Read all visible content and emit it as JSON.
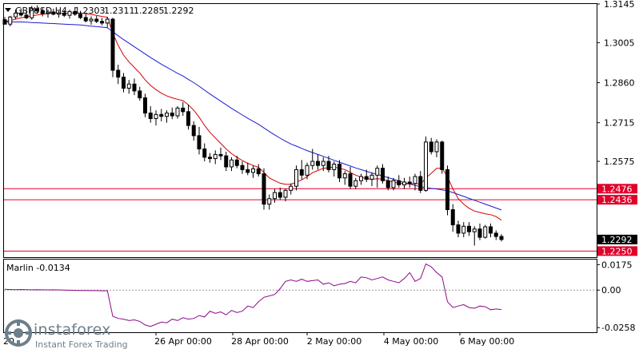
{
  "chart_data": [
    {
      "type": "candlestick",
      "title": "GBPUSD,H4",
      "ohlc_header": [
        "1.2303",
        "1.2311",
        "1.2285",
        "1.2292"
      ],
      "y_ticks": [
        "1.3145",
        "1.3005",
        "1.2860",
        "1.2715",
        "1.2575"
      ],
      "ylim": [
        1.2228,
        1.3145
      ],
      "x_labels": [
        "26 Apr 00:00",
        "28 Apr 00:00",
        "2 May 00:00",
        "4 May 00:00",
        "6 May 00:00"
      ],
      "x_label_first_partial": "20",
      "levels": [
        {
          "label": "1.2476",
          "value": 1.2476,
          "color": "#e0002a"
        },
        {
          "label": "1.2436",
          "value": 1.2436,
          "color": "#e0002a"
        },
        {
          "label": "1.2250",
          "value": 1.225,
          "color": "#e0002a"
        }
      ],
      "current_price_label": "1.2292",
      "current_price": 1.2292,
      "candles": [
        [
          1.3088,
          1.3098,
          1.307,
          1.3072
        ],
        [
          1.3072,
          1.3102,
          1.3064,
          1.3098
        ],
        [
          1.3098,
          1.3125,
          1.309,
          1.3112
        ],
        [
          1.3112,
          1.3128,
          1.31,
          1.3105
        ],
        [
          1.3105,
          1.312,
          1.309,
          1.3095
        ],
        [
          1.3095,
          1.3138,
          1.3088,
          1.3128
        ],
        [
          1.3128,
          1.314,
          1.3112,
          1.312
        ],
        [
          1.312,
          1.313,
          1.31,
          1.311
        ],
        [
          1.311,
          1.3125,
          1.3096,
          1.3116
        ],
        [
          1.3116,
          1.3128,
          1.3104,
          1.3108
        ],
        [
          1.3108,
          1.312,
          1.3096,
          1.3112
        ],
        [
          1.3112,
          1.3122,
          1.3098,
          1.3104
        ],
        [
          1.3104,
          1.3124,
          1.3092,
          1.3118
        ],
        [
          1.3118,
          1.3134,
          1.3102,
          1.3108
        ],
        [
          1.3108,
          1.312,
          1.309,
          1.3096
        ],
        [
          1.3096,
          1.3108,
          1.3078,
          1.3084
        ],
        [
          1.3084,
          1.31,
          1.307,
          1.309
        ],
        [
          1.309,
          1.3102,
          1.3076,
          1.3082
        ],
        [
          1.3082,
          1.3094,
          1.3068,
          1.3076
        ],
        [
          1.3076,
          1.3098,
          1.306,
          1.309
        ],
        [
          1.309,
          1.3095,
          1.288,
          1.2905
        ],
        [
          1.2905,
          1.2925,
          1.2855,
          1.288
        ],
        [
          1.288,
          1.2895,
          1.2825,
          1.284
        ],
        [
          1.284,
          1.287,
          1.282,
          1.2855
        ],
        [
          1.2855,
          1.2875,
          1.2815,
          1.283
        ],
        [
          1.283,
          1.2845,
          1.2795,
          1.2805
        ],
        [
          1.2805,
          1.282,
          1.2735,
          1.275
        ],
        [
          1.275,
          1.2775,
          1.2715,
          1.273
        ],
        [
          1.273,
          1.276,
          1.2705,
          1.2745
        ],
        [
          1.2745,
          1.2765,
          1.272,
          1.2738
        ],
        [
          1.2738,
          1.276,
          1.2715,
          1.275
        ],
        [
          1.275,
          1.277,
          1.2728,
          1.274
        ],
        [
          1.274,
          1.2775,
          1.273,
          1.2768
        ],
        [
          1.2768,
          1.279,
          1.274,
          1.2755
        ],
        [
          1.2755,
          1.278,
          1.269,
          1.2705
        ],
        [
          1.2705,
          1.272,
          1.265,
          1.2668
        ],
        [
          1.2668,
          1.27,
          1.26,
          1.262
        ],
        [
          1.262,
          1.264,
          1.2575,
          1.259
        ],
        [
          1.259,
          1.2605,
          1.257,
          1.2585
        ],
        [
          1.2585,
          1.2615,
          1.2565,
          1.26
        ],
        [
          1.26,
          1.2625,
          1.258,
          1.2595
        ],
        [
          1.2595,
          1.261,
          1.254,
          1.2555
        ],
        [
          1.2555,
          1.259,
          1.254,
          1.258
        ],
        [
          1.258,
          1.2595,
          1.255,
          1.256
        ],
        [
          1.256,
          1.2575,
          1.253,
          1.2545
        ],
        [
          1.2545,
          1.257,
          1.2525,
          1.2535
        ],
        [
          1.2535,
          1.256,
          1.2515,
          1.2548
        ],
        [
          1.2548,
          1.2565,
          1.252,
          1.253
        ],
        [
          1.253,
          1.255,
          1.24,
          1.242
        ],
        [
          1.242,
          1.2455,
          1.24,
          1.244
        ],
        [
          1.244,
          1.2475,
          1.2425,
          1.2462
        ],
        [
          1.2462,
          1.248,
          1.2435,
          1.2445
        ],
        [
          1.2445,
          1.2475,
          1.243,
          1.247
        ],
        [
          1.247,
          1.2495,
          1.2455,
          1.2485
        ],
        [
          1.2485,
          1.256,
          1.247,
          1.2545
        ],
        [
          1.2545,
          1.258,
          1.251,
          1.2525
        ],
        [
          1.2525,
          1.257,
          1.251,
          1.256
        ],
        [
          1.256,
          1.262,
          1.2545,
          1.2575
        ],
        [
          1.2575,
          1.26,
          1.2545,
          1.256
        ],
        [
          1.256,
          1.259,
          1.254,
          1.2575
        ],
        [
          1.2575,
          1.2595,
          1.2535,
          1.2545
        ],
        [
          1.2545,
          1.2575,
          1.252,
          1.2565
        ],
        [
          1.2565,
          1.258,
          1.25,
          1.2515
        ],
        [
          1.2515,
          1.254,
          1.249,
          1.253
        ],
        [
          1.253,
          1.2555,
          1.2475,
          1.2485
        ],
        [
          1.2485,
          1.2515,
          1.2475,
          1.2505
        ],
        [
          1.2505,
          1.253,
          1.249,
          1.252
        ],
        [
          1.252,
          1.2545,
          1.25,
          1.251
        ],
        [
          1.251,
          1.2535,
          1.2485,
          1.2525
        ],
        [
          1.2525,
          1.256,
          1.248,
          1.255
        ],
        [
          1.255,
          1.2565,
          1.2495,
          1.2505
        ],
        [
          1.2505,
          1.252,
          1.247,
          1.248
        ],
        [
          1.248,
          1.2515,
          1.247,
          1.2505
        ],
        [
          1.2505,
          1.2525,
          1.248,
          1.249
        ],
        [
          1.249,
          1.2515,
          1.2475,
          1.25
        ],
        [
          1.25,
          1.252,
          1.248,
          1.2495
        ],
        [
          1.2495,
          1.253,
          1.247,
          1.252
        ],
        [
          1.252,
          1.254,
          1.246,
          1.247
        ],
        [
          1.247,
          1.2665,
          1.2465,
          1.2645
        ],
        [
          1.2645,
          1.266,
          1.26,
          1.261
        ],
        [
          1.261,
          1.2655,
          1.259,
          1.2645
        ],
        [
          1.2645,
          1.265,
          1.253,
          1.2545
        ],
        [
          1.2545,
          1.256,
          1.238,
          1.24
        ],
        [
          1.24,
          1.242,
          1.232,
          1.2345
        ],
        [
          1.2345,
          1.236,
          1.23,
          1.2315
        ],
        [
          1.2315,
          1.2355,
          1.23,
          1.234
        ],
        [
          1.234,
          1.2355,
          1.2305,
          1.232
        ],
        [
          1.232,
          1.234,
          1.227,
          1.233
        ],
        [
          1.233,
          1.235,
          1.229,
          1.23
        ],
        [
          1.23,
          1.2345,
          1.2295,
          1.2338
        ],
        [
          1.2338,
          1.235,
          1.23,
          1.2315
        ],
        [
          1.2315,
          1.2325,
          1.229,
          1.2303
        ],
        [
          1.2303,
          1.2311,
          1.2285,
          1.2292
        ]
      ],
      "ma_fast": [
        1.3082,
        1.3085,
        1.309,
        1.3095,
        1.3098,
        1.3102,
        1.3105,
        1.3108,
        1.311,
        1.3112,
        1.3112,
        1.3111,
        1.3112,
        1.3113,
        1.3112,
        1.311,
        1.3107,
        1.3104,
        1.31,
        1.3097,
        1.304,
        1.2995,
        1.296,
        1.2935,
        1.2915,
        1.2895,
        1.287,
        1.285,
        1.2835,
        1.2822,
        1.2812,
        1.2805,
        1.28,
        1.2795,
        1.278,
        1.276,
        1.2735,
        1.2705,
        1.268,
        1.266,
        1.264,
        1.262,
        1.2603,
        1.259,
        1.2578,
        1.2568,
        1.256,
        1.2553,
        1.2535,
        1.2515,
        1.2505,
        1.2496,
        1.2492,
        1.2492,
        1.25,
        1.2508,
        1.252,
        1.2534,
        1.2542,
        1.255,
        1.2552,
        1.2555,
        1.255,
        1.2545,
        1.2535,
        1.2525,
        1.2518,
        1.2512,
        1.251,
        1.2512,
        1.251,
        1.2505,
        1.25,
        1.2496,
        1.2494,
        1.2493,
        1.2495,
        1.2492,
        1.2515,
        1.2532,
        1.255,
        1.255,
        1.252,
        1.2475,
        1.244,
        1.242,
        1.2405,
        1.2395,
        1.239,
        1.2385,
        1.2382,
        1.2375,
        1.2362
      ],
      "ma_slow": [
        1.308,
        1.308,
        1.308,
        1.308,
        1.3079,
        1.3078,
        1.3077,
        1.3076,
        1.3075,
        1.3074,
        1.3073,
        1.3072,
        1.3071,
        1.307,
        1.3069,
        1.3067,
        1.3065,
        1.3063,
        1.3061,
        1.3059,
        1.3045,
        1.303,
        1.3016,
        1.3003,
        1.299,
        1.2977,
        1.2964,
        1.2951,
        1.2939,
        1.2927,
        1.2916,
        1.2905,
        1.2894,
        1.2884,
        1.2872,
        1.286,
        1.2847,
        1.2833,
        1.2819,
        1.2806,
        1.2793,
        1.278,
        1.2767,
        1.2755,
        1.2743,
        1.2731,
        1.272,
        1.2709,
        1.2696,
        1.2683,
        1.2671,
        1.2659,
        1.2648,
        1.2638,
        1.263,
        1.2622,
        1.2614,
        1.2607,
        1.26,
        1.2593,
        1.2586,
        1.2579,
        1.2572,
        1.2565,
        1.2558,
        1.2551,
        1.2545,
        1.2539,
        1.2533,
        1.2528,
        1.2522,
        1.2516,
        1.251,
        1.2504,
        1.2498,
        1.2493,
        1.2488,
        1.2483,
        1.248,
        1.2477,
        1.2475,
        1.2472,
        1.2468,
        1.2462,
        1.2455,
        1.2448,
        1.2441,
        1.2434,
        1.2427,
        1.242,
        1.2413,
        1.2406,
        1.2399
      ]
    },
    {
      "type": "line",
      "title": "Marlin -0.0134",
      "y_ticks": [
        "0.0175",
        "0.00",
        "-0.0258"
      ],
      "ylim": [
        -0.029,
        0.021
      ],
      "color": "#8b0a8b",
      "values": [
        0.0005,
        0.0004,
        0.0003,
        0.0004,
        0.0003,
        0.0002,
        0.0003,
        0.0002,
        0.0001,
        0.0002,
        0.0001,
        0.0,
        -0.0001,
        -0.0002,
        -0.0003,
        -0.0003,
        -0.0004,
        -0.0004,
        -0.0005,
        -0.0005,
        -0.018,
        -0.0195,
        -0.02,
        -0.021,
        -0.0205,
        -0.0215,
        -0.024,
        -0.025,
        -0.0235,
        -0.022,
        -0.0225,
        -0.02,
        -0.021,
        -0.019,
        -0.02,
        -0.0195,
        -0.0175,
        -0.0185,
        -0.0145,
        -0.016,
        -0.015,
        -0.017,
        -0.014,
        -0.0155,
        -0.0145,
        -0.011,
        -0.012,
        -0.008,
        -0.005,
        -0.004,
        -0.003,
        0.001,
        0.006,
        0.007,
        0.006,
        0.0075,
        0.006,
        0.0065,
        0.007,
        0.004,
        0.005,
        0.003,
        0.004,
        0.0045,
        0.006,
        0.005,
        0.009,
        0.0085,
        0.007,
        0.008,
        0.009,
        0.007,
        0.006,
        0.005,
        0.008,
        0.012,
        0.006,
        0.008,
        0.018,
        0.016,
        0.012,
        0.009,
        -0.008,
        -0.012,
        -0.011,
        -0.01,
        -0.012,
        -0.0125,
        -0.011,
        -0.0115,
        -0.0135,
        -0.013,
        -0.0134
      ]
    }
  ],
  "watermark": {
    "brand": "instaforex",
    "tagline": "Instant Forex Trading"
  }
}
